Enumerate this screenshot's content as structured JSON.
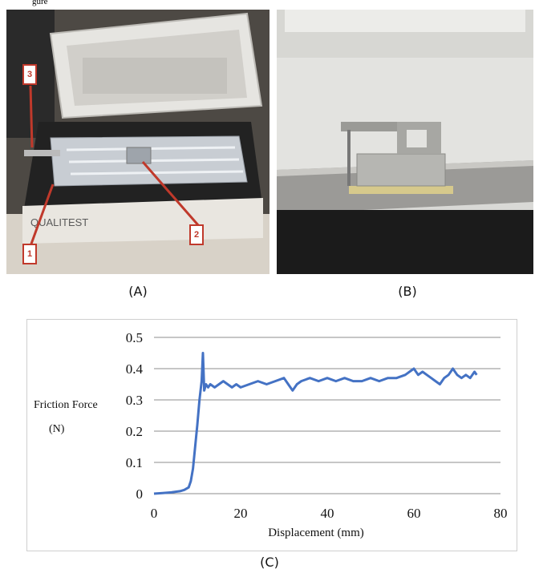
{
  "captions": {
    "a": "(A)",
    "b": "(B)",
    "c": "(C)"
  },
  "top_fragment": "gure",
  "photo_a": {
    "brand": "QUALITEST",
    "callouts": [
      "1",
      "2",
      "3"
    ]
  },
  "chart_data": {
    "type": "line",
    "title": "",
    "xlabel": "Displacement (mm)",
    "ylabel_line1": "Friction Force",
    "ylabel_line2": "(N)",
    "xlim": [
      0,
      80
    ],
    "ylim": [
      0,
      0.5
    ],
    "x_ticks": [
      "0",
      "20",
      "40",
      "60",
      "80"
    ],
    "y_ticks": [
      "0",
      "0.1",
      "0.2",
      "0.3",
      "0.4",
      "0.5"
    ],
    "grid": true,
    "legend": "none",
    "series_color": "#4472c4",
    "series": [
      {
        "x": [
          0,
          2,
          4,
          6,
          7,
          8,
          8.5,
          9,
          9.5,
          10,
          10.5,
          11,
          11.3,
          11.6,
          12,
          12.5,
          13,
          14,
          15,
          16,
          17,
          18,
          19,
          20,
          22,
          24,
          26,
          28,
          30,
          31,
          32,
          33,
          34,
          36,
          38,
          40,
          42,
          44,
          46,
          48,
          50,
          52,
          54,
          56,
          58,
          59,
          60,
          61,
          62,
          63,
          64,
          65,
          66,
          67,
          68,
          69,
          70,
          71,
          72,
          73,
          74,
          74.5
        ],
        "y": [
          0,
          0.002,
          0.004,
          0.008,
          0.012,
          0.02,
          0.04,
          0.08,
          0.15,
          0.22,
          0.3,
          0.36,
          0.45,
          0.33,
          0.35,
          0.34,
          0.35,
          0.34,
          0.35,
          0.36,
          0.35,
          0.34,
          0.35,
          0.34,
          0.35,
          0.36,
          0.35,
          0.36,
          0.37,
          0.35,
          0.33,
          0.35,
          0.36,
          0.37,
          0.36,
          0.37,
          0.36,
          0.37,
          0.36,
          0.36,
          0.37,
          0.36,
          0.37,
          0.37,
          0.38,
          0.39,
          0.4,
          0.38,
          0.39,
          0.38,
          0.37,
          0.36,
          0.35,
          0.37,
          0.38,
          0.4,
          0.38,
          0.37,
          0.38,
          0.37,
          0.39,
          0.38
        ]
      }
    ]
  }
}
